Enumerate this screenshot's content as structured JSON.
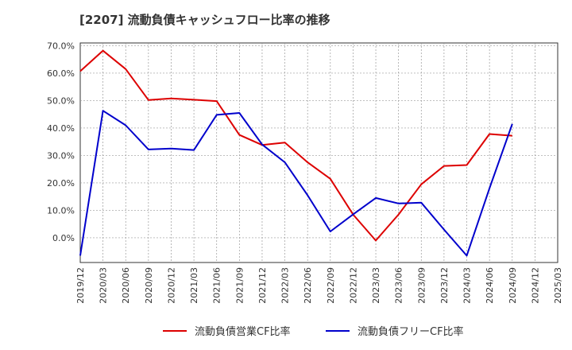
{
  "chart_data": {
    "type": "line",
    "title": "[2207]  流動負債キャッシュフロー比率の推移",
    "xlabel": "",
    "ylabel": "",
    "x": [
      "2019/12",
      "2020/03",
      "2020/06",
      "2020/09",
      "2020/12",
      "2021/03",
      "2021/06",
      "2021/09",
      "2021/12",
      "2022/03",
      "2022/06",
      "2022/09",
      "2022/12",
      "2023/03",
      "2023/06",
      "2023/09",
      "2023/12",
      "2024/03",
      "2024/06",
      "2024/09",
      "2024/12",
      "2025/03"
    ],
    "ylim": [
      -9,
      71
    ],
    "yticks": [
      0,
      10,
      20,
      30,
      40,
      50,
      60,
      70
    ],
    "ytick_labels": [
      "0.0%",
      "10.0%",
      "20.0%",
      "30.0%",
      "40.0%",
      "50.0%",
      "60.0%",
      "70.0%"
    ],
    "grid": true,
    "legend_position": "bottom",
    "series": [
      {
        "name": "流動負債営業CF比率",
        "color": "#dd0000",
        "values": [
          60.7,
          68.2,
          61.5,
          50.2,
          50.8,
          50.3,
          49.8,
          37.5,
          33.8,
          34.7,
          27.5,
          21.5,
          8.5,
          -1.0,
          8.5,
          19.5,
          26.2,
          26.5,
          37.8,
          37.2,
          null,
          null
        ]
      },
      {
        "name": "流動負債フリーCF比率",
        "color": "#0000cc",
        "values": [
          -6.5,
          46.3,
          41.0,
          32.2,
          32.5,
          32.0,
          44.8,
          45.5,
          34.0,
          27.5,
          15.5,
          2.3,
          8.5,
          14.5,
          12.5,
          12.8,
          3.0,
          -6.5,
          18.0,
          41.5,
          null,
          null
        ]
      }
    ]
  }
}
